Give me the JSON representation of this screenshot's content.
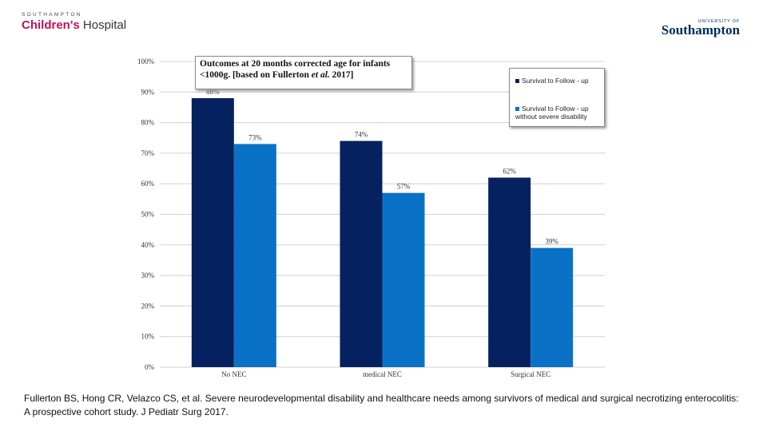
{
  "logos": {
    "left_small": "SOUTHAMPTON",
    "left_bold": "Children's",
    "left_light": " Hospital",
    "right_small": "UNIVERSITY OF",
    "right_main": "Southampton"
  },
  "colors": {
    "series1": "#06215f",
    "series2": "#0a72c6",
    "grid": "#d0d0d0"
  },
  "chart_data": {
    "type": "bar",
    "title": "Outcomes at 20 months corrected age for infants <1000g. [based on Fullerton et al. 2017]",
    "title_line1": "Outcomes at 20 months corrected age for infants",
    "title_line2_a": "<1000g. [based on Fullerton ",
    "title_line2_b": "et al.",
    "title_line2_c": " 2017]",
    "categories": [
      "No NEC",
      "medical NEC",
      "Surgical NEC"
    ],
    "series": [
      {
        "name": "Survival to Follow - up",
        "values": [
          88,
          74,
          62
        ],
        "labels": [
          "88%",
          "74%",
          "62%"
        ]
      },
      {
        "name": "Survival to Follow - up without severe disability",
        "values": [
          73,
          57,
          39
        ],
        "labels": [
          "73%",
          "57%",
          "39%"
        ]
      }
    ],
    "legend": [
      "Survival to Follow - up",
      "Survival to Follow - up without severe disability"
    ],
    "legend_position": "top-right",
    "ylim": [
      0,
      100
    ],
    "yticks": [
      0,
      10,
      20,
      30,
      40,
      50,
      60,
      70,
      80,
      90,
      100
    ],
    "ytick_labels": [
      "0%",
      "10%",
      "20%",
      "30%",
      "40%",
      "50%",
      "60%",
      "70%",
      "80%",
      "90%",
      "100%"
    ],
    "grid": true,
    "xlabel": "",
    "ylabel": ""
  },
  "citation": "Fullerton BS, Hong CR, Velazco CS, et al. Severe neurodevelopmental disability and healthcare needs among survivors of medical and surgical necrotizing enterocolitis: A prospective cohort study. J Pediatr Surg 2017."
}
